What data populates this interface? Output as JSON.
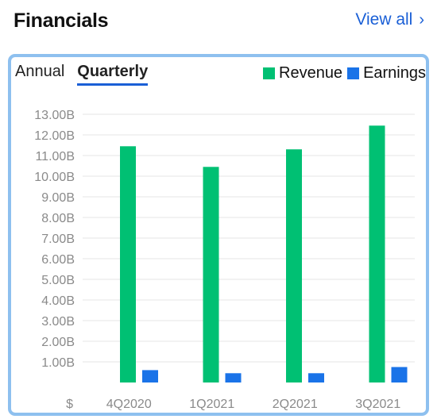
{
  "header": {
    "title": "Financials",
    "view_all": "View all"
  },
  "tabs": [
    {
      "label": "Annual",
      "active": false
    },
    {
      "label": "Quarterly",
      "active": true
    }
  ],
  "colors": {
    "revenue": "#00c073",
    "earnings": "#1a73e8",
    "grid": "#e4e4e4",
    "accent": "#1a5fd6"
  },
  "chart_data": {
    "type": "bar",
    "title": "",
    "xlabel": "",
    "ylabel": "",
    "categories": [
      "4Q2020",
      "1Q2021",
      "2Q2021",
      "3Q2021"
    ],
    "series": [
      {
        "name": "Revenue",
        "values": [
          11.45,
          10.45,
          11.3,
          12.45
        ]
      },
      {
        "name": "Earnings",
        "values": [
          0.6,
          0.45,
          0.45,
          0.75
        ]
      }
    ],
    "ylim": [
      0,
      13
    ],
    "ytick_labels": [
      "$",
      "1.00B",
      "2.00B",
      "3.00B",
      "4.00B",
      "5.00B",
      "6.00B",
      "7.00B",
      "8.00B",
      "9.00B",
      "10.00B",
      "11.00B",
      "12.00B",
      "13.00B"
    ],
    "grid": true,
    "legend": "top-right",
    "unit": "B"
  }
}
